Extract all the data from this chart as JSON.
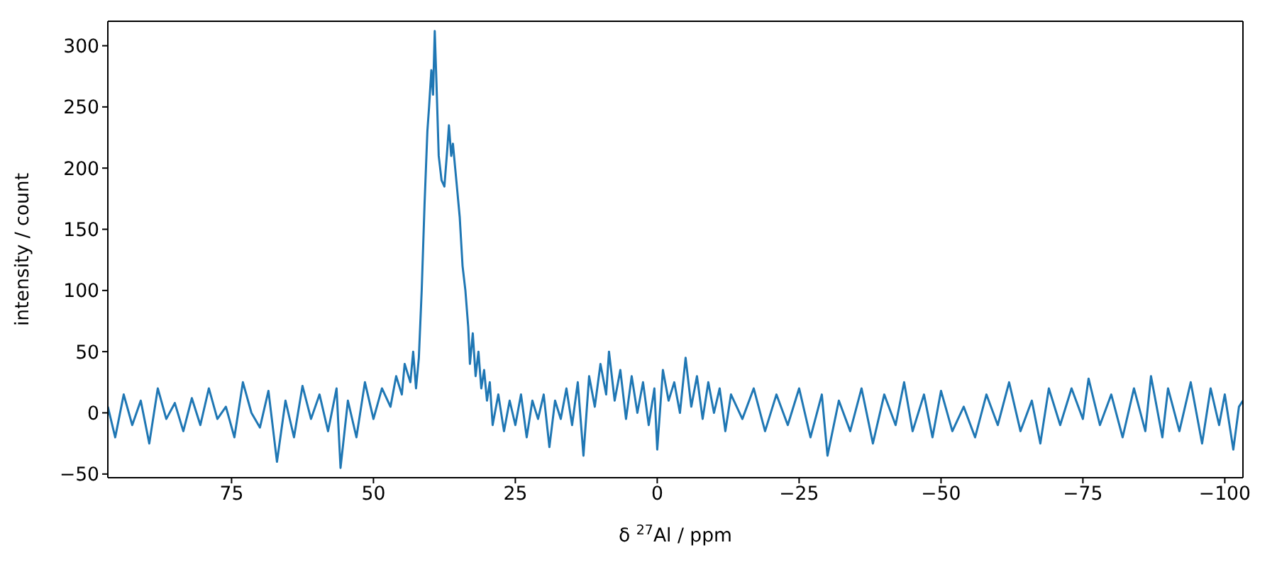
{
  "chart_data": {
    "type": "line",
    "xlabel": "δ $^{27}$Al / ppm",
    "ylabel": "intensity / count",
    "xlim": [
      96.8,
      -103.2
    ],
    "xticks": [
      75,
      50,
      25,
      0,
      {
        "value": -25,
        "label": "−25"
      },
      {
        "value": -50,
        "label": "−50"
      },
      {
        "value": -75,
        "label": "−75"
      },
      {
        "value": -100,
        "label": "−100"
      }
    ],
    "ylim": [
      -53,
      320
    ],
    "yticks": [
      {
        "value": -50,
        "label": "−50"
      },
      0,
      50,
      100,
      150,
      200,
      250,
      300
    ],
    "marker": "none",
    "line_style": "solid",
    "x": [
      96.8,
      95.5,
      94,
      92.5,
      91,
      89.5,
      88,
      86.5,
      85,
      83.5,
      82,
      80.5,
      79,
      77.5,
      76,
      74.5,
      73,
      71.5,
      70,
      68.5,
      67,
      65.5,
      64,
      62.5,
      61,
      59.5,
      58,
      56.5,
      55.8,
      54.5,
      53,
      51.5,
      50,
      48.5,
      47,
      46,
      45,
      44.5,
      43.5,
      43,
      42.5,
      42,
      41.5,
      41,
      40.5,
      40.2,
      39.8,
      39.5,
      39.2,
      38.9,
      38.5,
      38,
      37.5,
      37,
      36.7,
      36.3,
      36,
      35.6,
      35.2,
      34.8,
      34.3,
      33.8,
      33.3,
      33,
      32.5,
      32,
      31.5,
      31,
      30.5,
      30,
      29.5,
      29,
      28,
      27,
      26,
      25,
      24,
      23,
      22,
      21,
      20,
      19,
      18,
      17,
      16,
      15,
      14,
      13,
      12,
      11,
      10,
      9,
      8.5,
      7.5,
      6.5,
      5.5,
      4.5,
      3.5,
      2.5,
      1.5,
      0.5,
      0,
      -1,
      -2,
      -3,
      -4,
      -5,
      -6,
      -7,
      -8,
      -9,
      -10,
      -11,
      -12,
      -13,
      -15,
      -17,
      -19,
      -21,
      -23,
      -25,
      -27,
      -29,
      -30,
      -32,
      -34,
      -36,
      -38,
      -40,
      -42,
      -43.5,
      -45,
      -47,
      -48.5,
      -50,
      -52,
      -54,
      -56,
      -58,
      -60,
      -62,
      -64,
      -66,
      -67.5,
      -69,
      -71,
      -73,
      -75,
      -76,
      -78,
      -80,
      -82,
      -84,
      -86,
      -87,
      -89,
      -90,
      -92,
      -94,
      -96,
      -97.5,
      -99,
      -100,
      -101.5,
      -102.5,
      -103.2
    ],
    "series": [
      {
        "color": "#1f77b4",
        "values": [
          5,
          -20,
          15,
          -10,
          10,
          -25,
          20,
          -5,
          8,
          -15,
          12,
          -10,
          20,
          -5,
          5,
          -20,
          25,
          0,
          -12,
          18,
          -40,
          10,
          -20,
          22,
          -5,
          15,
          -15,
          20,
          -45,
          10,
          -20,
          25,
          -5,
          20,
          5,
          30,
          15,
          40,
          25,
          50,
          20,
          45,
          100,
          170,
          230,
          250,
          280,
          260,
          312,
          270,
          210,
          190,
          185,
          215,
          235,
          210,
          220,
          200,
          180,
          160,
          120,
          100,
          70,
          40,
          65,
          30,
          50,
          20,
          35,
          10,
          25,
          -10,
          15,
          -15,
          10,
          -10,
          15,
          -20,
          10,
          -5,
          15,
          -28,
          10,
          -5,
          20,
          -10,
          25,
          -35,
          30,
          5,
          40,
          15,
          50,
          10,
          35,
          -5,
          30,
          0,
          25,
          -10,
          20,
          -30,
          35,
          10,
          25,
          0,
          45,
          5,
          30,
          -5,
          25,
          0,
          20,
          -15,
          15,
          -5,
          20,
          -15,
          15,
          -10,
          20,
          -20,
          15,
          -35,
          10,
          -15,
          20,
          -25,
          15,
          -10,
          25,
          -15,
          15,
          -20,
          18,
          -15,
          5,
          -20,
          15,
          -10,
          25,
          -15,
          10,
          -25,
          20,
          -10,
          20,
          -5,
          28,
          -10,
          15,
          -20,
          20,
          -15,
          30,
          -20,
          20,
          -15,
          25,
          -25,
          20,
          -10,
          15,
          -30,
          5,
          10
        ]
      }
    ]
  }
}
